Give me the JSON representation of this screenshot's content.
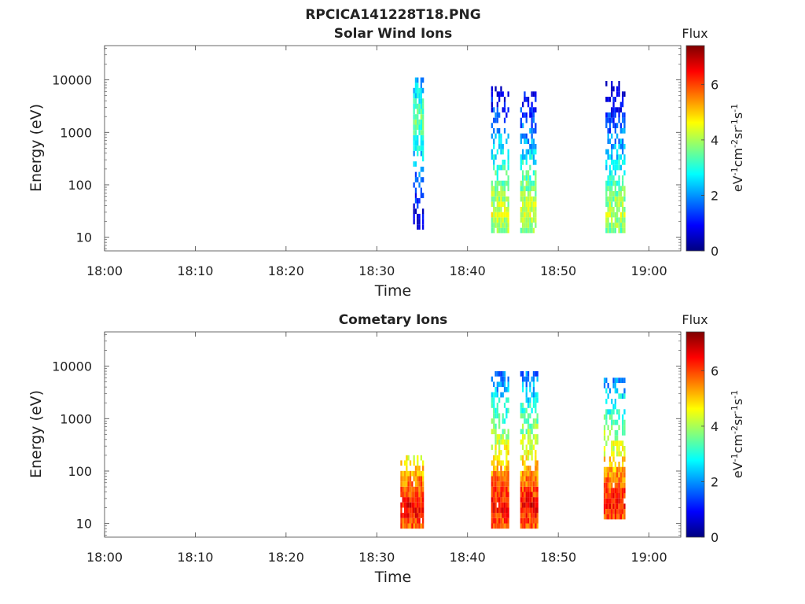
{
  "figure": {
    "suptitle": "RPCICA141228T18.PNG"
  },
  "chart_data": [
    {
      "type": "heatmap",
      "title": "Solar Wind Ions",
      "xlabel": "Time",
      "ylabel": "Energy (eV)",
      "x_ticks": [
        "18:00",
        "18:10",
        "18:20",
        "18:30",
        "18:40",
        "18:50",
        "19:00"
      ],
      "xlim_minutes": [
        0,
        63.5
      ],
      "y_scale": "log",
      "y_ticks": [
        10,
        100,
        1000,
        10000
      ],
      "y_tick_labels": [
        "10",
        "100",
        "1000",
        "10000"
      ],
      "ylim": [
        5.5,
        45000
      ],
      "colorbar": {
        "label": "Flux",
        "unit_label": "eV-1cm-2sr-1s-1",
        "ticks": [
          0,
          2,
          4,
          6
        ],
        "range": [
          0,
          7.4
        ],
        "colormap": "jet"
      },
      "bursts": [
        {
          "t_start": 34.0,
          "t_end": 35.2,
          "e_low": 14,
          "e_high": 9000,
          "peak_energy": 1500,
          "peak_flux": 3.5
        },
        {
          "t_start": 42.6,
          "t_end": 44.6,
          "e_low": 12,
          "e_high": 7000,
          "peak_energy": 25,
          "peak_flux": 4.4
        },
        {
          "t_start": 45.8,
          "t_end": 47.6,
          "e_low": 12,
          "e_high": 5000,
          "peak_energy": 25,
          "peak_flux": 4.4
        },
        {
          "t_start": 55.2,
          "t_end": 57.4,
          "e_low": 12,
          "e_high": 9000,
          "peak_energy": 25,
          "peak_flux": 4.2
        }
      ]
    },
    {
      "type": "heatmap",
      "title": "Cometary Ions",
      "xlabel": "Time",
      "ylabel": "Energy (eV)",
      "x_ticks": [
        "18:00",
        "18:10",
        "18:20",
        "18:30",
        "18:40",
        "18:50",
        "19:00"
      ],
      "xlim_minutes": [
        0,
        63.5
      ],
      "y_scale": "log",
      "y_ticks": [
        10,
        100,
        1000,
        10000
      ],
      "y_tick_labels": [
        "10",
        "100",
        "1000",
        "10000"
      ],
      "ylim": [
        5.5,
        45000
      ],
      "colorbar": {
        "label": "Flux",
        "unit_label": "eV-1cm-2sr-1s-1",
        "ticks": [
          0,
          2,
          4,
          6
        ],
        "range": [
          0,
          7.4
        ],
        "colormap": "jet"
      },
      "bursts": [
        {
          "t_start": 32.6,
          "t_end": 35.2,
          "e_low": 8,
          "e_high": 170,
          "peak_energy": 18,
          "peak_flux": 6.5
        },
        {
          "t_start": 42.6,
          "t_end": 44.6,
          "e_low": 8,
          "e_high": 6500,
          "peak_energy": 20,
          "peak_flux": 6.5
        },
        {
          "t_start": 45.8,
          "t_end": 47.8,
          "e_low": 8,
          "e_high": 7500,
          "peak_energy": 20,
          "peak_flux": 6.5
        },
        {
          "t_start": 55.0,
          "t_end": 57.4,
          "e_low": 12,
          "e_high": 5000,
          "peak_energy": 22,
          "peak_flux": 6.4
        }
      ]
    }
  ]
}
